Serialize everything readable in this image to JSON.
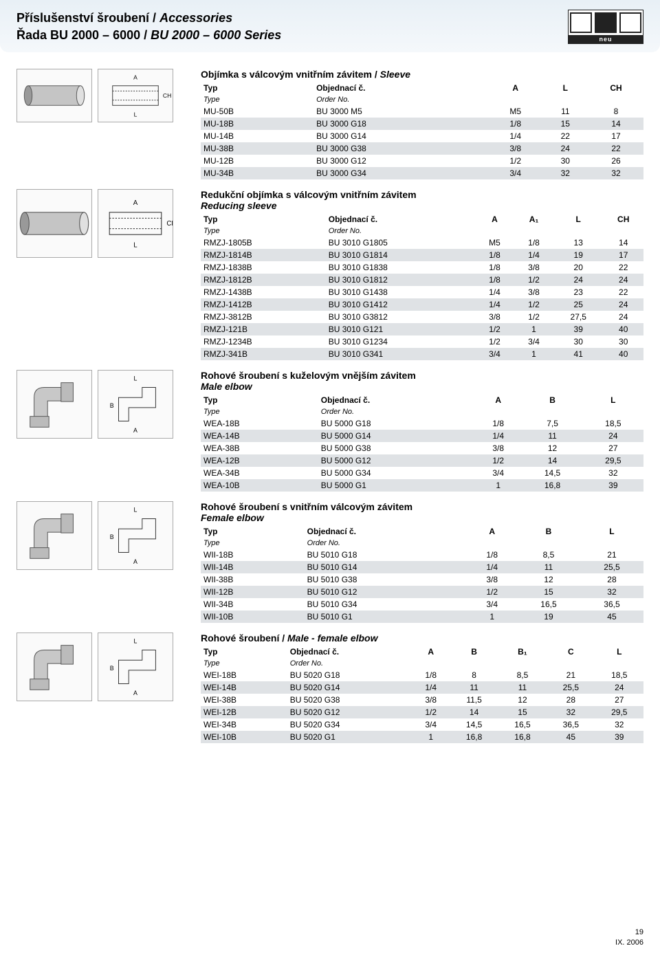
{
  "header": {
    "line1_cz": "Příslušenství šroubení / ",
    "line1_en": "Accessories",
    "line2_cz": "Řada BU 2000 – 6000 / ",
    "line2_en": "BU 2000 – 6000 Series",
    "logo_text": "neu"
  },
  "sections": [
    {
      "title_cz": "Objímka s válcovým vnitřním závitem / ",
      "title_en": "Sleeve",
      "header_main": [
        "Typ",
        "Objednací č.",
        "A",
        "L",
        "CH"
      ],
      "header_sub": [
        "Type",
        "Order No.",
        "",
        "",
        ""
      ],
      "rows": [
        [
          "MU-50B",
          "BU 3000 M5",
          "M5",
          "11",
          "8"
        ],
        [
          "MU-18B",
          "BU 3000 G18",
          "1/8",
          "15",
          "14"
        ],
        [
          "MU-14B",
          "BU 3000 G14",
          "1/4",
          "22",
          "17"
        ],
        [
          "MU-38B",
          "BU 3000 G38",
          "3/8",
          "24",
          "22"
        ],
        [
          "MU-12B",
          "BU 3000 G12",
          "1/2",
          "30",
          "26"
        ],
        [
          "MU-34B",
          "BU 3000 G34",
          "3/4",
          "32",
          "32"
        ]
      ]
    },
    {
      "title_cz": "Redukční objímka s válcovým vnitřním závitem",
      "title_en": "Reducing sleeve",
      "header_main": [
        "Typ",
        "Objednací č.",
        "A",
        "A₁",
        "L",
        "CH"
      ],
      "header_sub": [
        "Type",
        "Order No.",
        "",
        "",
        "",
        ""
      ],
      "rows": [
        [
          "RMZJ-1805B",
          "BU 3010 G1805",
          "M5",
          "1/8",
          "13",
          "14"
        ],
        [
          "RMZJ-1814B",
          "BU 3010 G1814",
          "1/8",
          "1/4",
          "19",
          "17"
        ],
        [
          "RMZJ-1838B",
          "BU 3010 G1838",
          "1/8",
          "3/8",
          "20",
          "22"
        ],
        [
          "RMZJ-1812B",
          "BU 3010 G1812",
          "1/8",
          "1/2",
          "24",
          "24"
        ],
        [
          "RMZJ-1438B",
          "BU 3010 G1438",
          "1/4",
          "3/8",
          "23",
          "22"
        ],
        [
          "RMZJ-1412B",
          "BU 3010 G1412",
          "1/4",
          "1/2",
          "25",
          "24"
        ],
        [
          "RMZJ-3812B",
          "BU 3010 G3812",
          "3/8",
          "1/2",
          "27,5",
          "24"
        ],
        [
          "RMZJ-121B",
          "BU 3010 G121",
          "1/2",
          "1",
          "39",
          "40"
        ],
        [
          "RMZJ-1234B",
          "BU 3010 G1234",
          "1/2",
          "3/4",
          "30",
          "30"
        ],
        [
          "RMZJ-341B",
          "BU 3010 G341",
          "3/4",
          "1",
          "41",
          "40"
        ]
      ]
    },
    {
      "title_cz": "Rohové šroubení s kuželovým vnějším závitem",
      "title_en": "Male elbow",
      "header_main": [
        "Typ",
        "Objednací č.",
        "A",
        "B",
        "L"
      ],
      "header_sub": [
        "Type",
        "Order No.",
        "",
        "",
        ""
      ],
      "rows": [
        [
          "WEA-18B",
          "BU 5000 G18",
          "1/8",
          "7,5",
          "18,5"
        ],
        [
          "WEA-14B",
          "BU 5000 G14",
          "1/4",
          "11",
          "24"
        ],
        [
          "WEA-38B",
          "BU 5000 G38",
          "3/8",
          "12",
          "27"
        ],
        [
          "WEA-12B",
          "BU 5000 G12",
          "1/2",
          "14",
          "29,5"
        ],
        [
          "WEA-34B",
          "BU 5000 G34",
          "3/4",
          "14,5",
          "32"
        ],
        [
          "WEA-10B",
          "BU 5000 G1",
          "1",
          "16,8",
          "39"
        ]
      ]
    },
    {
      "title_cz": "Rohové šroubení s vnitřním válcovým závitem",
      "title_en": "Female elbow",
      "header_main": [
        "Typ",
        "Objednací č.",
        "A",
        "B",
        "L"
      ],
      "header_sub": [
        "Type",
        "Order No.",
        "",
        "",
        ""
      ],
      "rows": [
        [
          "WII-18B",
          "BU 5010 G18",
          "1/8",
          "8,5",
          "21"
        ],
        [
          "WII-14B",
          "BU 5010 G14",
          "1/4",
          "11",
          "25,5"
        ],
        [
          "WII-38B",
          "BU 5010 G38",
          "3/8",
          "12",
          "28"
        ],
        [
          "WII-12B",
          "BU 5010 G12",
          "1/2",
          "15",
          "32"
        ],
        [
          "WII-34B",
          "BU 5010 G34",
          "3/4",
          "16,5",
          "36,5"
        ],
        [
          "WII-10B",
          "BU 5010 G1",
          "1",
          "19",
          "45"
        ]
      ]
    },
    {
      "title_cz": "Rohové šroubení / ",
      "title_en": "Male - female elbow",
      "header_main": [
        "Typ",
        "Objednací č.",
        "A",
        "B",
        "B₁",
        "C",
        "L"
      ],
      "header_sub": [
        "Type",
        "Order No.",
        "",
        "",
        "",
        "",
        ""
      ],
      "rows": [
        [
          "WEI-18B",
          "BU 5020 G18",
          "1/8",
          "8",
          "8,5",
          "21",
          "18,5"
        ],
        [
          "WEI-14B",
          "BU 5020 G14",
          "1/4",
          "11",
          "11",
          "25,5",
          "24"
        ],
        [
          "WEI-38B",
          "BU 5020 G38",
          "3/8",
          "11,5",
          "12",
          "28",
          "27"
        ],
        [
          "WEI-12B",
          "BU 5020 G12",
          "1/2",
          "14",
          "15",
          "32",
          "29,5"
        ],
        [
          "WEI-34B",
          "BU 5020 G34",
          "3/4",
          "14,5",
          "16,5",
          "36,5",
          "32"
        ],
        [
          "WEI-10B",
          "BU 5020 G1",
          "1",
          "16,8",
          "16,8",
          "45",
          "39"
        ]
      ]
    }
  ],
  "footer": {
    "page": "19",
    "date": "IX. 2006"
  },
  "colors": {
    "header_bg_top": "#e8f0f6",
    "header_bg_bot": "#f5f8fb",
    "row_stripe": "#dfe2e5",
    "border": "#aaaaaa",
    "text": "#000000"
  }
}
